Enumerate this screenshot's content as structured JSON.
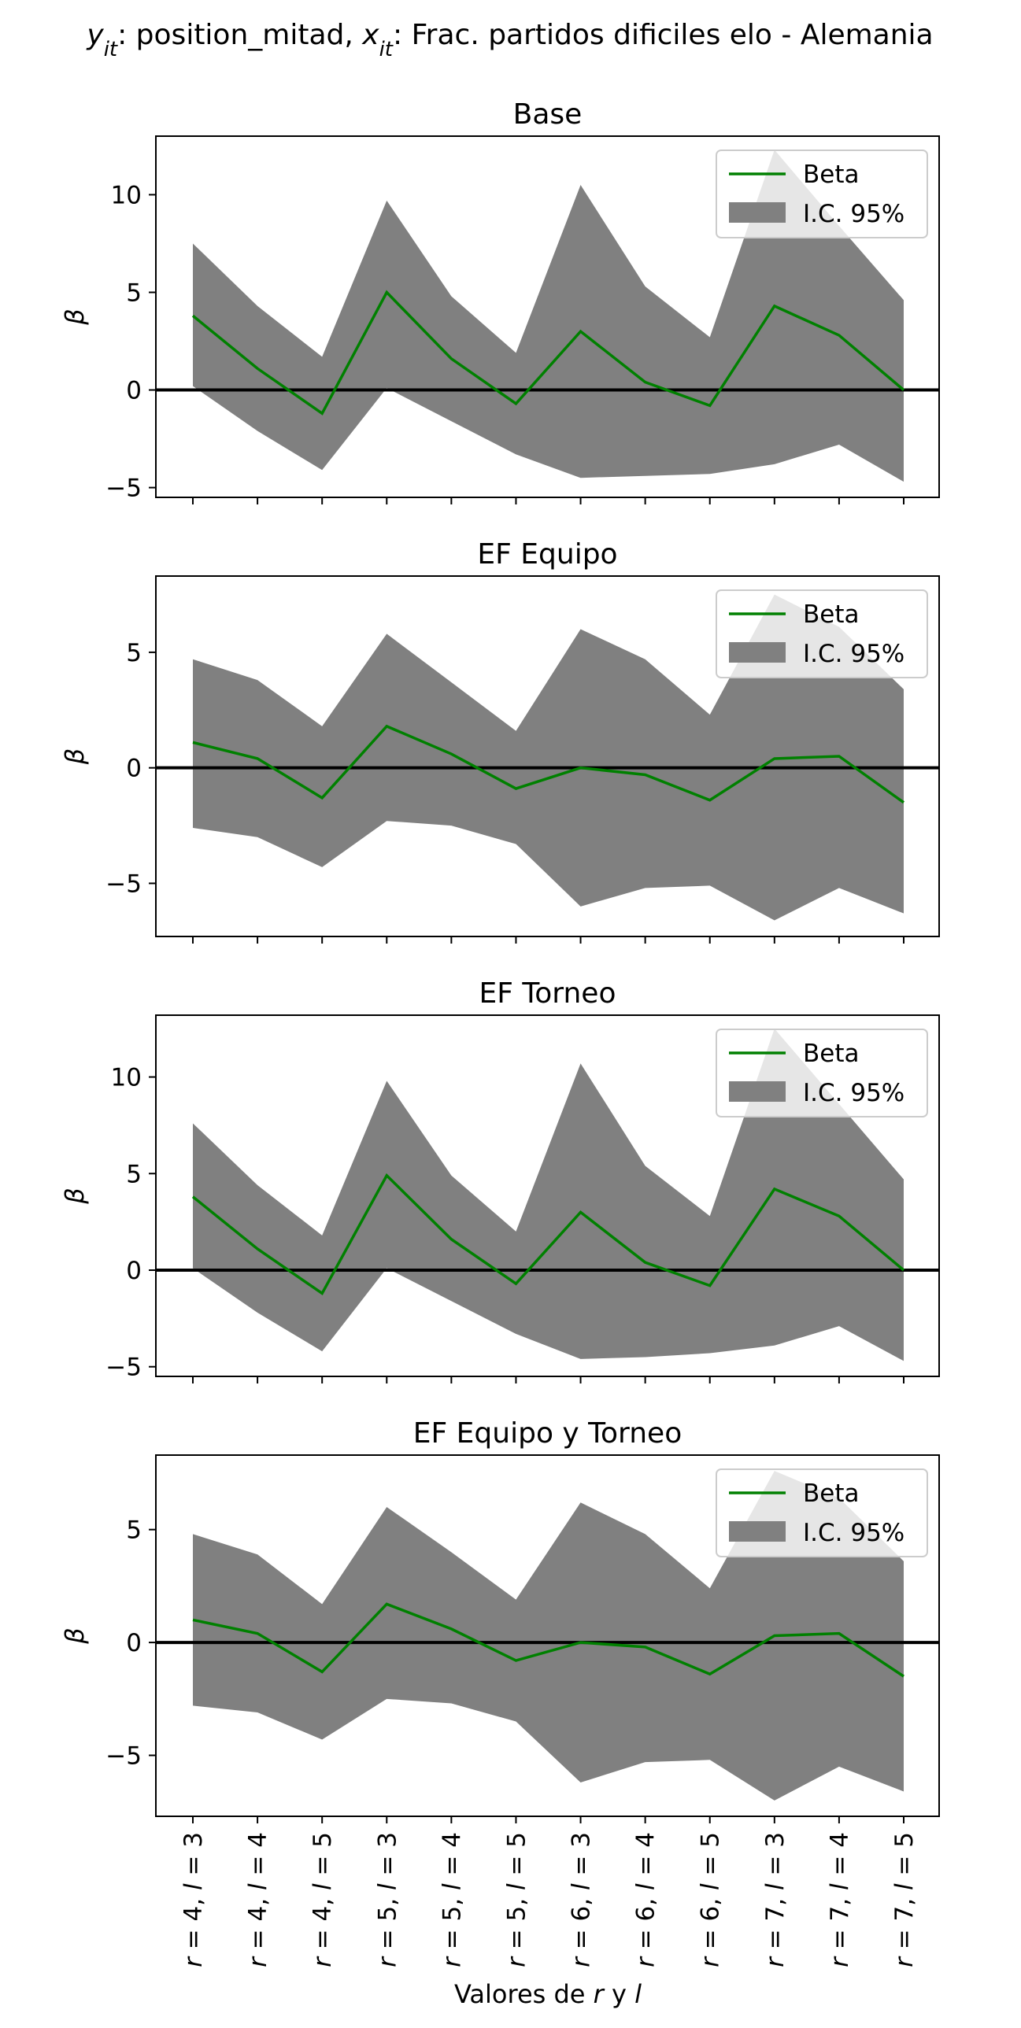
{
  "figure": {
    "suptitle_parts": [
      {
        "text": "y",
        "italic": true
      },
      {
        "text": "it",
        "italic": true,
        "sub": true
      },
      {
        "text": ": position_mitad, ",
        "italic": false
      },
      {
        "text": "x",
        "italic": true
      },
      {
        "text": "it",
        "italic": true,
        "sub": true
      },
      {
        "text": ": Frac. partidos dificiles elo - Alemania",
        "italic": false
      }
    ],
    "xlabel_parts": [
      {
        "text": "Valores de ",
        "italic": false
      },
      {
        "text": "r",
        "italic": true
      },
      {
        "text": " y ",
        "italic": false
      },
      {
        "text": "l",
        "italic": true
      }
    ]
  },
  "chart_data": [
    {
      "type": "line",
      "title": "Base",
      "ylabel": "β",
      "categories": [
        "r = 4, l = 3",
        "r = 4, l = 4",
        "r = 4, l = 5",
        "r = 5, l = 3",
        "r = 5, l = 4",
        "r = 5, l = 5",
        "r = 6, l = 3",
        "r = 6, l = 4",
        "r = 6, l = 5",
        "r = 7, l = 3",
        "r = 7, l = 4",
        "r = 7, l = 5"
      ],
      "series": [
        {
          "name": "Beta",
          "color": "#008000",
          "values": [
            3.8,
            1.1,
            -1.2,
            5.0,
            1.6,
            -0.7,
            3.0,
            0.4,
            -0.8,
            4.3,
            2.8,
            0.0
          ]
        },
        {
          "name": "I.C. 95%",
          "color": "#808080",
          "type": "band",
          "lower": [
            0.2,
            -2.1,
            -4.1,
            0.1,
            -1.6,
            -3.3,
            -4.5,
            -4.4,
            -4.3,
            -3.8,
            -2.8,
            -4.7
          ],
          "upper": [
            7.5,
            4.3,
            1.7,
            9.7,
            4.8,
            1.9,
            10.5,
            5.3,
            2.7,
            12.3,
            8.4,
            4.6
          ]
        }
      ],
      "ylim": [
        -5.5,
        13.0
      ],
      "yticks": [
        -5,
        0,
        5,
        10
      ],
      "hline": 0,
      "legend": "top-right",
      "show_xticklabels": false
    },
    {
      "type": "line",
      "title": "EF Equipo",
      "ylabel": "β",
      "categories": [
        "r = 4, l = 3",
        "r = 4, l = 4",
        "r = 4, l = 5",
        "r = 5, l = 3",
        "r = 5, l = 4",
        "r = 5, l = 5",
        "r = 6, l = 3",
        "r = 6, l = 4",
        "r = 6, l = 5",
        "r = 7, l = 3",
        "r = 7, l = 4",
        "r = 7, l = 5"
      ],
      "series": [
        {
          "name": "Beta",
          "color": "#008000",
          "values": [
            1.1,
            0.4,
            -1.3,
            1.8,
            0.6,
            -0.9,
            0.0,
            -0.3,
            -1.4,
            0.4,
            0.5,
            -1.5
          ]
        },
        {
          "name": "I.C. 95%",
          "color": "#808080",
          "type": "band",
          "lower": [
            -2.6,
            -3.0,
            -4.3,
            -2.3,
            -2.5,
            -3.3,
            -6.0,
            -5.2,
            -5.1,
            -6.6,
            -5.2,
            -6.3
          ],
          "upper": [
            4.7,
            3.8,
            1.8,
            5.8,
            3.7,
            1.6,
            6.0,
            4.7,
            2.3,
            7.5,
            6.1,
            3.4
          ]
        }
      ],
      "ylim": [
        -7.3,
        8.3
      ],
      "yticks": [
        -5,
        0,
        5
      ],
      "hline": 0,
      "legend": "top-right",
      "show_xticklabels": false
    },
    {
      "type": "line",
      "title": "EF Torneo",
      "ylabel": "β",
      "categories": [
        "r = 4, l = 3",
        "r = 4, l = 4",
        "r = 4, l = 5",
        "r = 5, l = 3",
        "r = 5, l = 4",
        "r = 5, l = 5",
        "r = 6, l = 3",
        "r = 6, l = 4",
        "r = 6, l = 5",
        "r = 7, l = 3",
        "r = 7, l = 4",
        "r = 7, l = 5"
      ],
      "series": [
        {
          "name": "Beta",
          "color": "#008000",
          "values": [
            3.8,
            1.1,
            -1.2,
            4.9,
            1.6,
            -0.7,
            3.0,
            0.4,
            -0.8,
            4.2,
            2.8,
            0.0
          ]
        },
        {
          "name": "I.C. 95%",
          "color": "#808080",
          "type": "band",
          "lower": [
            0.1,
            -2.2,
            -4.2,
            0.1,
            -1.6,
            -3.3,
            -4.6,
            -4.5,
            -4.3,
            -3.9,
            -2.9,
            -4.7
          ],
          "upper": [
            7.6,
            4.4,
            1.8,
            9.8,
            4.9,
            2.0,
            10.7,
            5.4,
            2.8,
            12.5,
            8.6,
            4.7
          ]
        }
      ],
      "ylim": [
        -5.5,
        13.2
      ],
      "yticks": [
        -5,
        0,
        5,
        10
      ],
      "hline": 0,
      "legend": "top-right",
      "show_xticklabels": false
    },
    {
      "type": "line",
      "title": "EF Equipo y Torneo",
      "ylabel": "β",
      "categories": [
        "r = 4, l = 3",
        "r = 4, l = 4",
        "r = 4, l = 5",
        "r = 5, l = 3",
        "r = 5, l = 4",
        "r = 5, l = 5",
        "r = 6, l = 3",
        "r = 6, l = 4",
        "r = 6, l = 5",
        "r = 7, l = 3",
        "r = 7, l = 4",
        "r = 7, l = 5"
      ],
      "series": [
        {
          "name": "Beta",
          "color": "#008000",
          "values": [
            1.0,
            0.4,
            -1.3,
            1.7,
            0.6,
            -0.8,
            0.0,
            -0.2,
            -1.4,
            0.3,
            0.4,
            -1.5
          ]
        },
        {
          "name": "I.C. 95%",
          "color": "#808080",
          "type": "band",
          "lower": [
            -2.8,
            -3.1,
            -4.3,
            -2.5,
            -2.7,
            -3.5,
            -6.2,
            -5.3,
            -5.2,
            -7.0,
            -5.5,
            -6.6
          ]
        },
        {
          "name": "",
          "color": "#808080",
          "type": "band-upper",
          "upper": [
            4.8,
            3.9,
            1.7,
            6.0,
            4.0,
            1.9,
            6.2,
            4.8,
            2.4,
            7.6,
            6.4,
            3.6
          ]
        }
      ],
      "ylim": [
        -7.7,
        8.3
      ],
      "yticks": [
        -5,
        0,
        5
      ],
      "hline": 0,
      "legend": "top-right",
      "show_xticklabels": true
    }
  ]
}
